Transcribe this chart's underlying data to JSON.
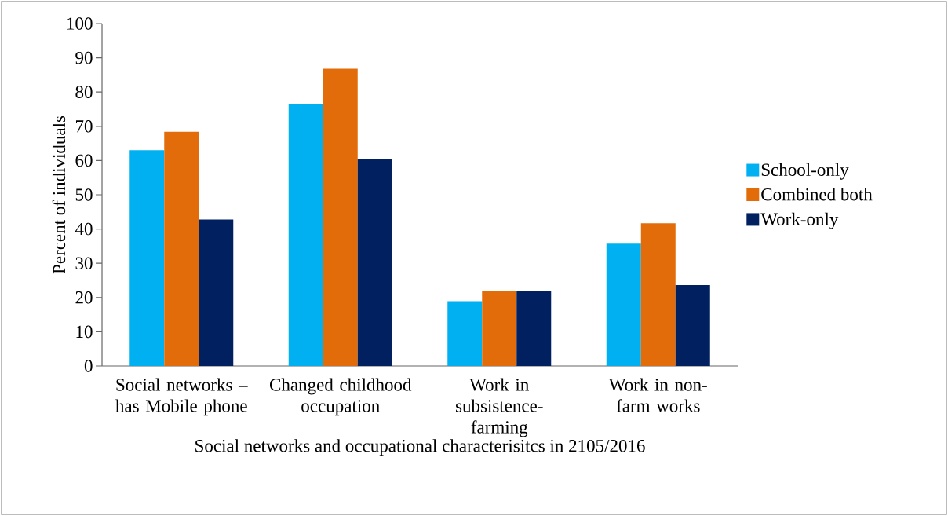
{
  "chart_data": {
    "type": "bar",
    "xlabel": "Social networks and occupational characterisitcs in 2105/2016",
    "ylabel": "Percent of individuals",
    "categories": [
      "Social networks – has Mobile phone",
      "Changed childhood occupation",
      "Work in subsistence-farming",
      "Work in non-farm works"
    ],
    "series": [
      {
        "name": "School-only",
        "color": "#00b0f0",
        "values": [
          63,
          76.6,
          18.9,
          35.7
        ]
      },
      {
        "name": "Combined both",
        "color": "#e36c0a",
        "values": [
          68.4,
          86.8,
          21.9,
          41.7
        ]
      },
      {
        "name": "Work-only",
        "color": "#002060",
        "values": [
          42.8,
          60.3,
          21.9,
          23.6
        ]
      }
    ],
    "ylim": [
      0,
      100
    ],
    "yticks": [
      0,
      10,
      20,
      30,
      40,
      50,
      60,
      70,
      80,
      90,
      100
    ],
    "legend": "right"
  }
}
